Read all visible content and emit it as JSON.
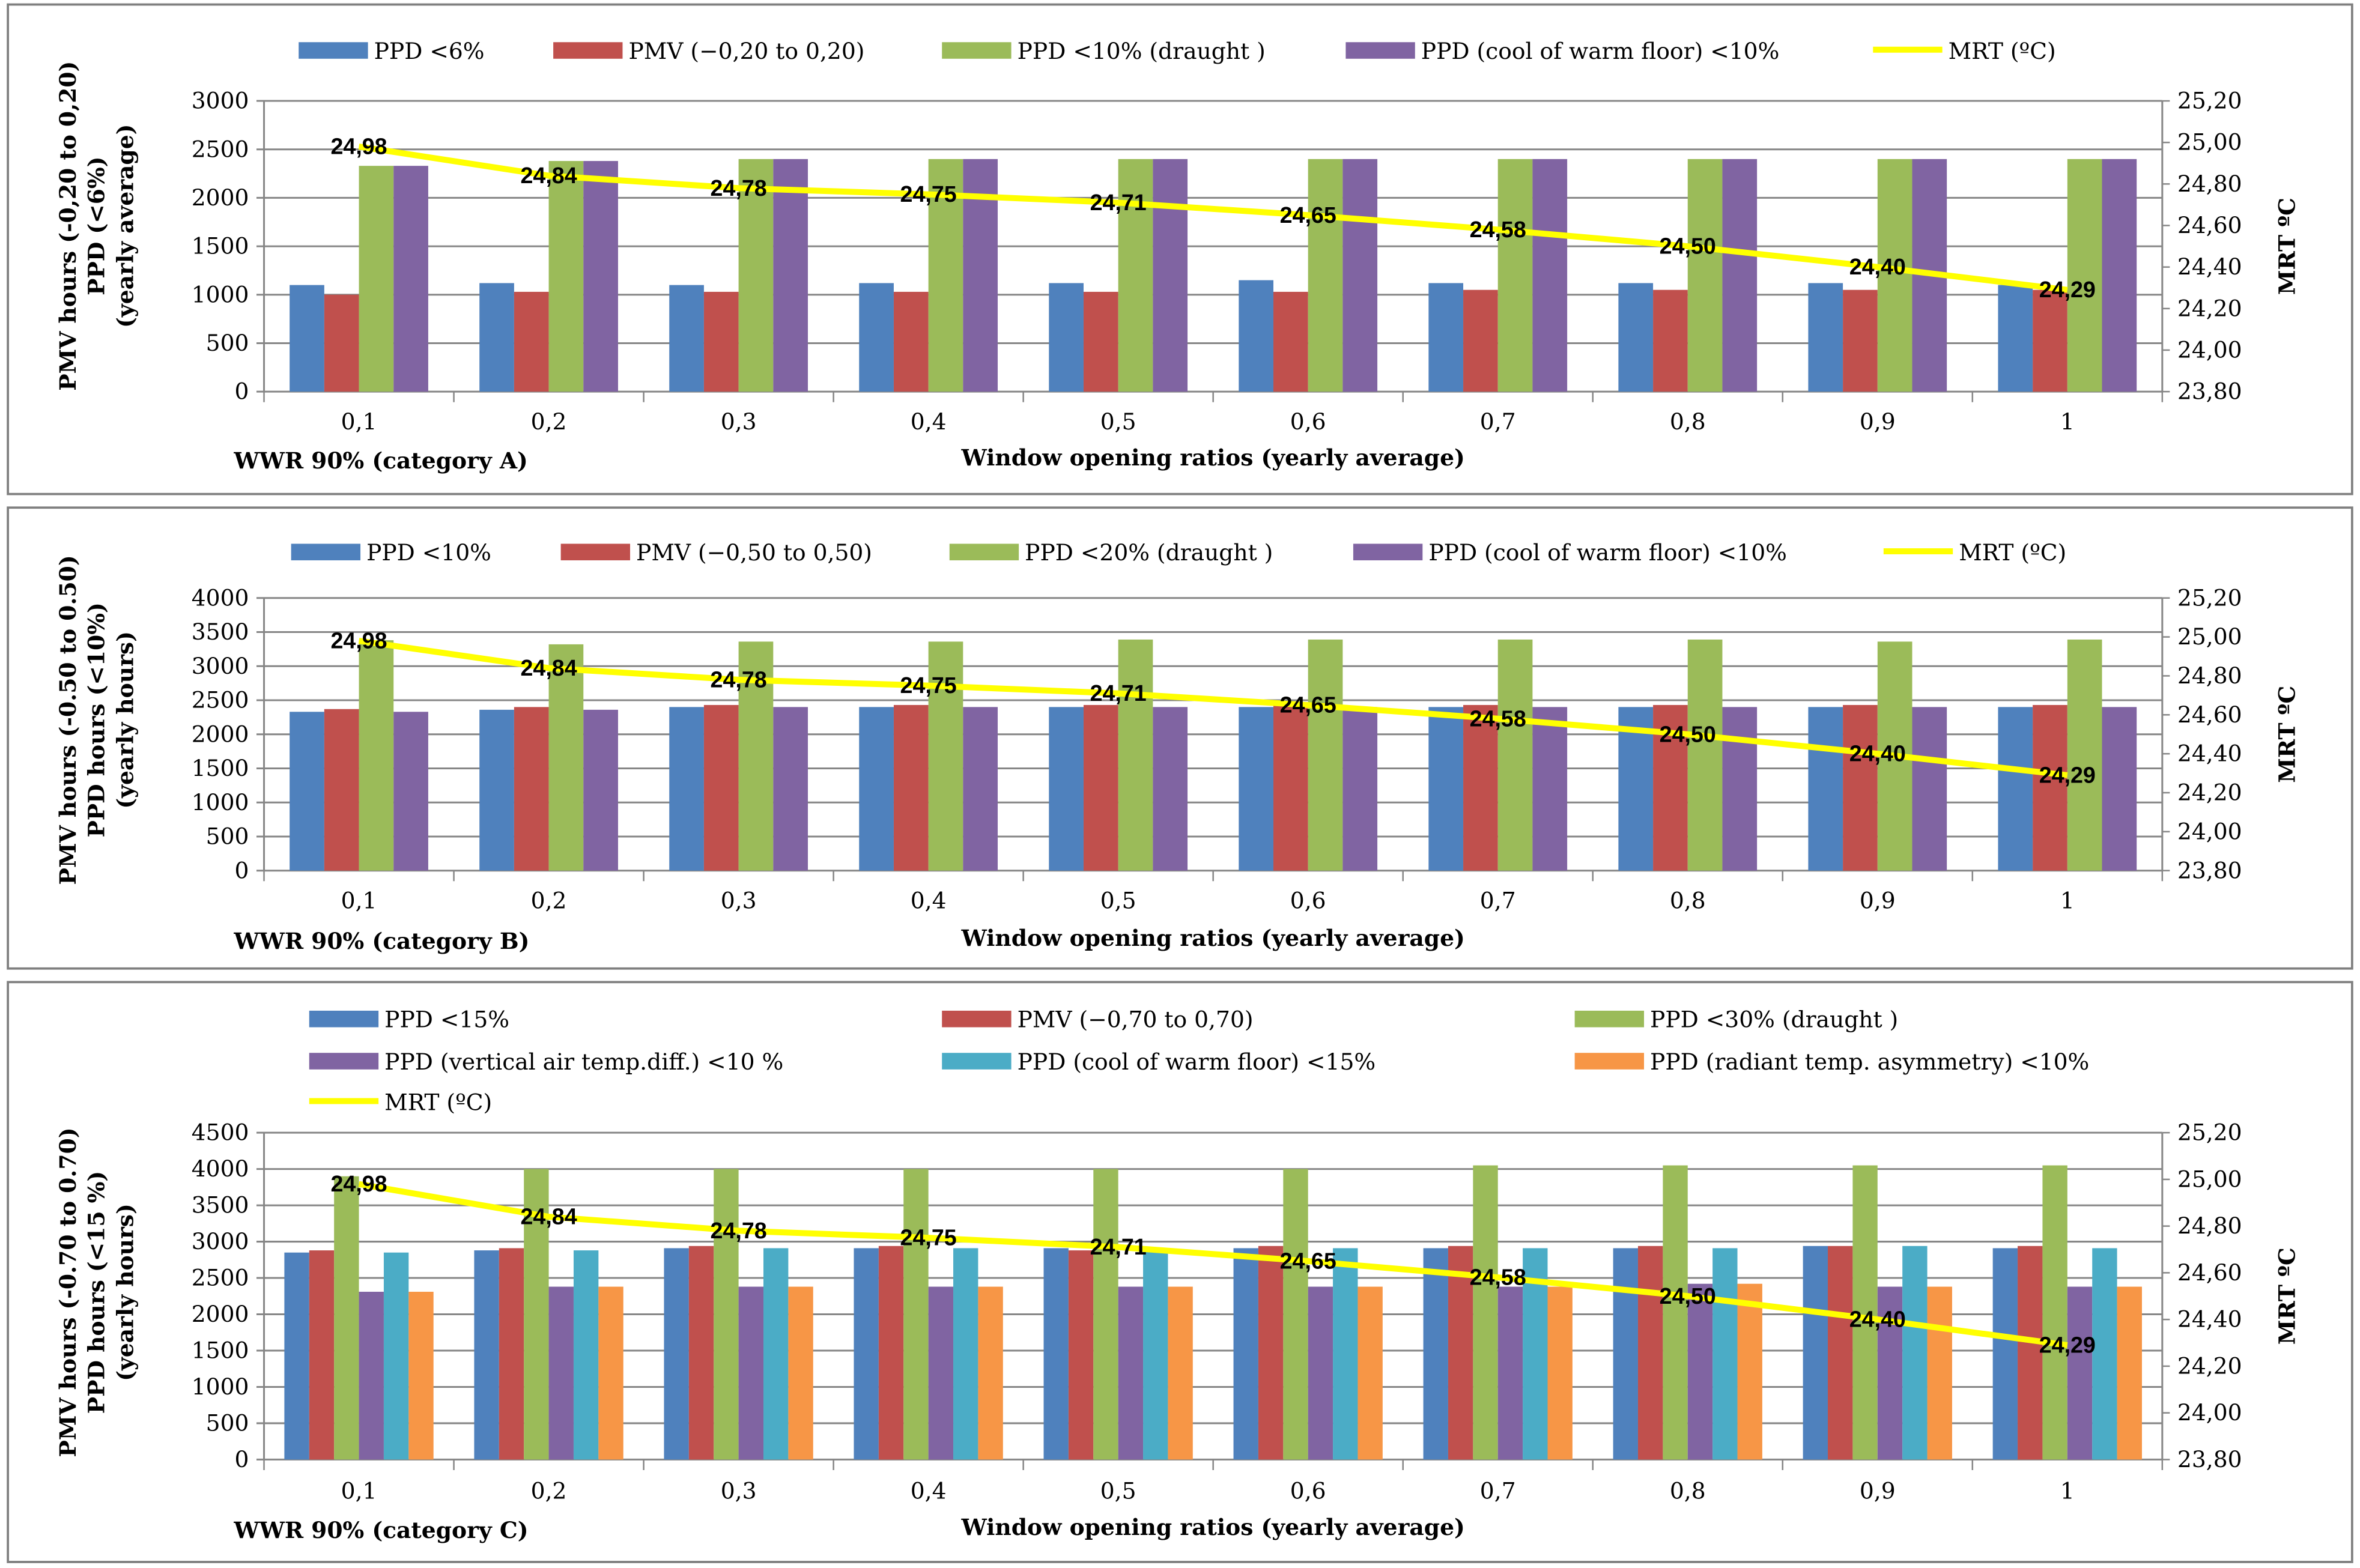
{
  "colors": {
    "blue": "#4f81bd",
    "red": "#c0504d",
    "green": "#9bbb59",
    "purple": "#8064a2",
    "cyan": "#4bacc6",
    "orange": "#f79646",
    "line": "#ffff00",
    "grid": "#868686"
  },
  "chart_data": [
    {
      "type": "bar",
      "categories": [
        "0,1",
        "0,2",
        "0,3",
        "0,4",
        "0,5",
        "0,6",
        "0,7",
        "0,8",
        "0,9",
        "1"
      ],
      "category_label": "WWR 90% (category A)",
      "xlabel": "Window  opening ratios (yearly average)",
      "ylabel": [
        "PMV hours (-0,20 to 0,20)",
        "PPD (<6%)",
        "(yearly average)"
      ],
      "y2label": "MRT ºC",
      "ylim": [
        0,
        3000
      ],
      "yticks": [
        0,
        500,
        1000,
        1500,
        2000,
        2500,
        3000
      ],
      "y2lim": [
        23.8,
        25.2
      ],
      "y2ticks": [
        "23,80",
        "24,00",
        "24,20",
        "24,40",
        "24,60",
        "24,80",
        "25,00",
        "25,20"
      ],
      "grid": true,
      "legend": "top",
      "series": [
        {
          "name": "PPD <6%",
          "color": "blue",
          "values": [
            1100,
            1120,
            1100,
            1120,
            1120,
            1150,
            1120,
            1120,
            1120,
            1100
          ]
        },
        {
          "name": "PMV (−0,20 to 0,20)",
          "color": "red",
          "values": [
            1000,
            1030,
            1030,
            1030,
            1030,
            1030,
            1050,
            1050,
            1050,
            1050
          ]
        },
        {
          "name": "PPD <10% (draught )",
          "color": "green",
          "values": [
            2330,
            2380,
            2400,
            2400,
            2400,
            2400,
            2400,
            2400,
            2400,
            2400
          ]
        },
        {
          "name": "PPD (cool of warm floor) <10%",
          "color": "purple",
          "values": [
            2330,
            2380,
            2400,
            2400,
            2400,
            2400,
            2400,
            2400,
            2400,
            2400
          ]
        }
      ],
      "line": {
        "name": "MRT (ºC)",
        "values": [
          24.98,
          24.84,
          24.78,
          24.75,
          24.71,
          24.65,
          24.58,
          24.5,
          24.4,
          24.29
        ],
        "labels": [
          "24,98",
          "24,84",
          "24,78",
          "24,75",
          "24,71",
          "24,65",
          "24,58",
          "24,50",
          "24,40",
          "24,29"
        ]
      }
    },
    {
      "type": "bar",
      "categories": [
        "0,1",
        "0,2",
        "0,3",
        "0,4",
        "0,5",
        "0,6",
        "0,7",
        "0,8",
        "0,9",
        "1"
      ],
      "category_label": "WWR 90% (category B)",
      "xlabel": "Window  opening ratios (yearly average)",
      "ylabel": [
        "PMV hours (-0.50 to 0.50)",
        "PPD hours (<10%)",
        "(yearly hours)"
      ],
      "y2label": "MRT ºC",
      "ylim": [
        0,
        4000
      ],
      "yticks": [
        0,
        500,
        1000,
        1500,
        2000,
        2500,
        3000,
        3500,
        4000
      ],
      "y2lim": [
        23.8,
        25.2
      ],
      "y2ticks": [
        "23,80",
        "24,00",
        "24,20",
        "24,40",
        "24,60",
        "24,80",
        "25,00",
        "25,20"
      ],
      "grid": true,
      "legend": "top",
      "series": [
        {
          "name": "PPD <10%",
          "color": "blue",
          "values": [
            2330,
            2360,
            2400,
            2400,
            2400,
            2400,
            2400,
            2400,
            2400,
            2400
          ]
        },
        {
          "name": "PMV (−0,50 to 0,50)",
          "color": "red",
          "values": [
            2370,
            2400,
            2430,
            2430,
            2430,
            2430,
            2430,
            2430,
            2430,
            2430
          ]
        },
        {
          "name": "PPD <20% (draught )",
          "color": "green",
          "values": [
            3380,
            3320,
            3360,
            3360,
            3390,
            3390,
            3390,
            3390,
            3360,
            3390
          ]
        },
        {
          "name": "PPD (cool of warm floor) <10%",
          "color": "purple",
          "values": [
            2330,
            2360,
            2400,
            2400,
            2400,
            2400,
            2400,
            2400,
            2400,
            2400
          ]
        }
      ],
      "line": {
        "name": "MRT (ºC)",
        "values": [
          24.98,
          24.84,
          24.78,
          24.75,
          24.71,
          24.65,
          24.58,
          24.5,
          24.4,
          24.29
        ],
        "labels": [
          "24,98",
          "24,84",
          "24,78",
          "24,75",
          "24,71",
          "24,65",
          "24,58",
          "24,50",
          "24,40",
          "24,29"
        ]
      }
    },
    {
      "type": "bar",
      "categories": [
        "0,1",
        "0,2",
        "0,3",
        "0,4",
        "0,5",
        "0,6",
        "0,7",
        "0,8",
        "0,9",
        "1"
      ],
      "category_label": "WWR 90% (category C)",
      "xlabel": "Window  opening ratios (yearly average)",
      "ylabel": [
        "PMV hours (-0.70 to 0.70)",
        "PPD hours (<15 %)",
        "(yearly hours)"
      ],
      "y2label": "MRT ºC",
      "ylim": [
        0,
        4500
      ],
      "yticks": [
        0,
        500,
        1000,
        1500,
        2000,
        2500,
        3000,
        3500,
        4000,
        4500
      ],
      "y2lim": [
        23.8,
        25.2
      ],
      "y2ticks": [
        "23,80",
        "24,00",
        "24,20",
        "24,40",
        "24,60",
        "24,80",
        "25,00",
        "25,20"
      ],
      "grid": true,
      "legend": "top",
      "series": [
        {
          "name": "PPD <15%",
          "color": "blue",
          "values": [
            2850,
            2880,
            2910,
            2910,
            2910,
            2910,
            2910,
            2910,
            2940,
            2910
          ]
        },
        {
          "name": "PMV (−0,70 to 0,70)",
          "color": "red",
          "values": [
            2880,
            2910,
            2940,
            2940,
            2880,
            2940,
            2940,
            2940,
            2940,
            2940
          ]
        },
        {
          "name": "PPD <30% (draught )",
          "color": "green",
          "values": [
            3900,
            4000,
            4000,
            4000,
            4000,
            4000,
            4050,
            4050,
            4050,
            4050
          ]
        },
        {
          "name": "PPD (vertical air temp.diff.) <10 %",
          "color": "purple",
          "values": [
            2310,
            2380,
            2380,
            2380,
            2380,
            2380,
            2380,
            2420,
            2380,
            2380
          ]
        },
        {
          "name": "PPD (cool of warm floor) <15%",
          "color": "cyan",
          "values": [
            2850,
            2880,
            2910,
            2910,
            2880,
            2910,
            2910,
            2910,
            2940,
            2910
          ]
        },
        {
          "name": "PPD (radiant temp. asymmetry) <10%",
          "color": "orange",
          "values": [
            2310,
            2380,
            2380,
            2380,
            2380,
            2380,
            2380,
            2420,
            2380,
            2380
          ]
        }
      ],
      "line": {
        "name": "MRT (ºC)",
        "values": [
          24.98,
          24.84,
          24.78,
          24.75,
          24.71,
          24.65,
          24.58,
          24.5,
          24.4,
          24.29
        ],
        "labels": [
          "24,98",
          "24,84",
          "24,78",
          "24,75",
          "24,71",
          "24,65",
          "24,58",
          "24,50",
          "24,40",
          "24,29"
        ]
      }
    }
  ]
}
